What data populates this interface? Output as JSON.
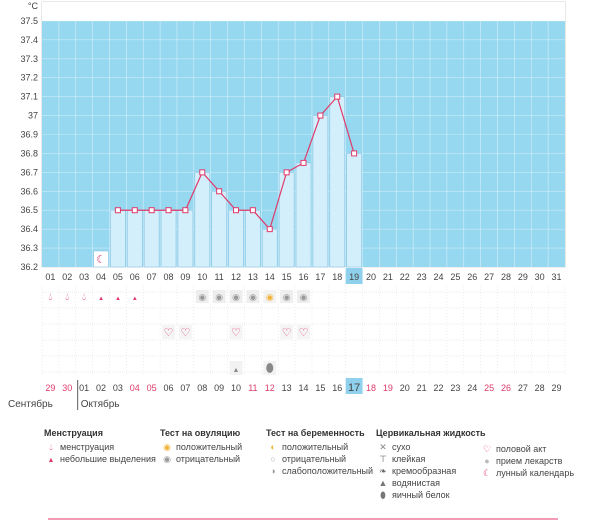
{
  "chart_data": {
    "type": "bar",
    "unit": "°C",
    "y_ticks": [
      "36.2",
      "36.3",
      "36.4",
      "36.5",
      "36.6",
      "36.7",
      "36.8",
      "36.9",
      "37",
      "37.1",
      "37.2",
      "37.3",
      "37.4",
      "37.5"
    ],
    "ylim": [
      36.2,
      37.6
    ],
    "coverline": 37.5,
    "days": [
      "01",
      "02",
      "03",
      "04",
      "05",
      "06",
      "07",
      "08",
      "09",
      "10",
      "11",
      "12",
      "13",
      "14",
      "15",
      "16",
      "17",
      "18",
      "19",
      "20",
      "21",
      "22",
      "23",
      "24",
      "25",
      "26",
      "27",
      "28",
      "29",
      "30",
      "31"
    ],
    "current_day": "19",
    "temperatures": [
      {
        "day": "05",
        "value": 36.5
      },
      {
        "day": "06",
        "value": 36.5
      },
      {
        "day": "07",
        "value": 36.5
      },
      {
        "day": "08",
        "value": 36.5
      },
      {
        "day": "09",
        "value": 36.5
      },
      {
        "day": "10",
        "value": 36.7
      },
      {
        "day": "11",
        "value": 36.6
      },
      {
        "day": "12",
        "value": 36.5
      },
      {
        "day": "13",
        "value": 36.5
      },
      {
        "day": "14",
        "value": 36.4
      },
      {
        "day": "15",
        "value": 36.7
      },
      {
        "day": "16",
        "value": 36.75
      },
      {
        "day": "17",
        "value": 37.0
      },
      {
        "day": "18",
        "value": 37.1
      },
      {
        "day": "19",
        "value": 36.8
      }
    ],
    "moon_day": "04",
    "menstruation_days": [
      "01",
      "02",
      "03"
    ],
    "light_spotting_days": [
      "04",
      "05",
      "06"
    ],
    "ovulation_negative_days": [
      "10",
      "11",
      "12",
      "13",
      "15",
      "16"
    ],
    "ovulation_positive_days": [
      "14"
    ],
    "intercourse_days": [
      "08",
      "09",
      "12",
      "15",
      "16"
    ],
    "fluid_watery_days": [
      "12"
    ],
    "fluid_eggwhite_days": [
      "14"
    ],
    "cycle_days": [
      "29",
      "30",
      "01",
      "02",
      "03",
      "04",
      "05",
      "06",
      "07",
      "08",
      "09",
      "10",
      "11",
      "12",
      "13",
      "14",
      "15",
      "16",
      "17",
      "18",
      "19",
      "20",
      "21",
      "22",
      "23",
      "24",
      "25",
      "26",
      "27",
      "28",
      "29"
    ],
    "cycle_weekend_idx": [
      0,
      1,
      5,
      6,
      12,
      13,
      19,
      20,
      26,
      27
    ],
    "cycle_current_idx": 18,
    "month_prev": "Сентябрь",
    "month_next": "Октябрь"
  },
  "legend": {
    "menstruation": {
      "title": "Менструация",
      "items": [
        "менструация",
        "небольшие выделения"
      ]
    },
    "ovulation": {
      "title": "Тест на овуляцию",
      "items": [
        "положительный",
        "отрицательный"
      ]
    },
    "pregnancy": {
      "title": "Тест на беременность",
      "items": [
        "положительный",
        "отрицательный",
        "слабоположительный"
      ]
    },
    "fluid": {
      "title": "Цервикальная жидкость",
      "items": [
        "сухо",
        "клейкая",
        "кремообразная",
        "водянистая",
        "яичный белок"
      ]
    },
    "other": {
      "items": [
        "половой акт",
        "прием лекарств",
        "лунный календарь"
      ]
    }
  },
  "colors": {
    "sky": "#96d8f0",
    "bar": "#d3effb",
    "bar_edge": "#8fc6e6",
    "line": "#e03a6a",
    "pink": "#e03a6a",
    "grid": "#dcdcdc",
    "highlight": "#8fd0ec"
  }
}
